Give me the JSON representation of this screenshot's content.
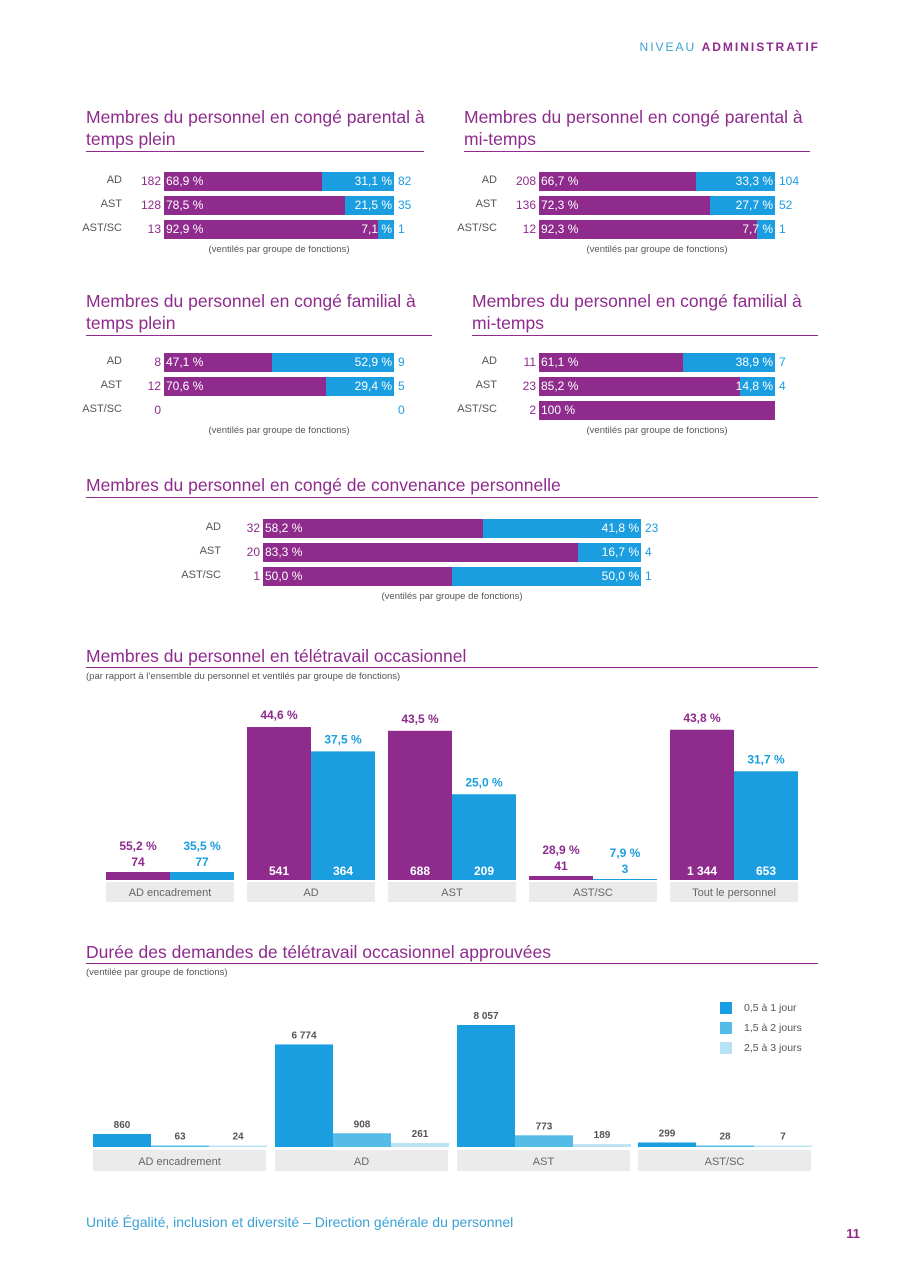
{
  "header": {
    "niveau": "NIVEAU",
    "administratif": "ADMINISTRATIF"
  },
  "colors": {
    "purple": "#8e2b8d",
    "blue": "#1a9ee0",
    "mid_blue": "#55bce8",
    "light_blue": "#b9e3f5",
    "label_bg": "#ebebeb"
  },
  "split_charts": [
    {
      "title_l1": "Membres du personnel en congé parental à",
      "title_l2": "temps plein",
      "caption": "(ventilés par groupe de fonctions)",
      "rows": [
        {
          "label": "AD",
          "n_left": "182",
          "p_left": "68,9 %",
          "p_right": "31,1 %",
          "n_right": "82",
          "frac": 0.689
        },
        {
          "label": "AST",
          "n_left": "128",
          "p_left": "78,5 %",
          "p_right": "21,5 %",
          "n_right": "35",
          "frac": 0.785
        },
        {
          "label": "AST/SC",
          "n_left": "13",
          "p_left": "92,9 %",
          "p_right": "7,1 %",
          "n_right": "1",
          "frac": 0.929
        }
      ]
    },
    {
      "title_l1": "Membres du personnel en congé parental à",
      "title_l2": "mi-temps",
      "caption": "(ventilés par groupe de fonctions)",
      "rows": [
        {
          "label": "AD",
          "n_left": "208",
          "p_left": "66,7 %",
          "p_right": "33,3 %",
          "n_right": "104",
          "frac": 0.667
        },
        {
          "label": "AST",
          "n_left": "136",
          "p_left": "72,3 %",
          "p_right": "27,7 %",
          "n_right": "52",
          "frac": 0.723
        },
        {
          "label": "AST/SC",
          "n_left": "12",
          "p_left": "92,3 %",
          "p_right": "7,7 %",
          "n_right": "1",
          "frac": 0.923
        }
      ]
    },
    {
      "title_l1": "Membres du personnel en congé familial à",
      "title_l2": "temps plein",
      "caption": "(ventilés par groupe de fonctions)",
      "rows": [
        {
          "label": "AD",
          "n_left": "8",
          "p_left": "47,1 %",
          "p_right": "52,9 %",
          "n_right": "9",
          "frac": 0.471
        },
        {
          "label": "AST",
          "n_left": "12",
          "p_left": "70,6 %",
          "p_right": "29,4 %",
          "n_right": "5",
          "frac": 0.706
        },
        {
          "label": "AST/SC",
          "n_left": "0",
          "p_left": "",
          "p_right": "",
          "n_right": "0",
          "frac": 0,
          "empty": true
        }
      ]
    },
    {
      "title_l1": "Membres du personnel en congé familial à",
      "title_l2": "mi-temps",
      "caption": "(ventilés par groupe de fonctions)",
      "rows": [
        {
          "label": "AD",
          "n_left": "11",
          "p_left": "61,1 %",
          "p_right": "38,9 %",
          "n_right": "7",
          "frac": 0.611
        },
        {
          "label": "AST",
          "n_left": "23",
          "p_left": "85,2 %",
          "p_right": "14,8 %",
          "n_right": "4",
          "frac": 0.852
        },
        {
          "label": "AST/SC",
          "n_left": "2",
          "p_left": "100 %",
          "p_right": "",
          "n_right": "",
          "frac": 1.0
        }
      ]
    },
    {
      "title_l1": "Membres du personnel en congé de convenance personnelle",
      "title_l2": "",
      "caption": "(ventilés par groupe de fonctions)",
      "rows": [
        {
          "label": "AD",
          "n_left": "32",
          "p_left": "58,2 %",
          "p_right": "41,8 %",
          "n_right": "23",
          "frac": 0.582
        },
        {
          "label": "AST",
          "n_left": "20",
          "p_left": "83,3 %",
          "p_right": "16,7 %",
          "n_right": "4",
          "frac": 0.833
        },
        {
          "label": "AST/SC",
          "n_left": "1",
          "p_left": "50,0 %",
          "p_right": "50,0 %",
          "n_right": "1",
          "frac": 0.5
        }
      ]
    }
  ],
  "telework": {
    "title": "Membres du personnel en télétravail occasionnel",
    "subtitle": "(par rapport à l’ensemble du personnel et ventilés par groupe de fonctions)"
  },
  "duration": {
    "title": "Durée des demandes de télétravail occasionnel approuvées",
    "subtitle": "(ventilée par groupe de fonctions)"
  },
  "chart_data": [
    {
      "type": "bar",
      "title": "Membres du personnel en télétravail occasionnel",
      "categories": [
        "AD encadrement",
        "AD",
        "AST",
        "AST/SC",
        "Tout le personnel"
      ],
      "series": [
        {
          "values": [
            55.2,
            44.6,
            43.5,
            28.9,
            43.8
          ],
          "labels": [
            "55,2 %",
            "44,6 %",
            "43,5 %",
            "28,9 %",
            "43,8 %"
          ],
          "counts": [
            "74",
            "541",
            "688",
            "41",
            "1 344"
          ],
          "color": "#8e2b8d"
        },
        {
          "values": [
            35.5,
            37.5,
            25.0,
            7.9,
            31.7
          ],
          "labels": [
            "35,5 %",
            "37,5 %",
            "25,0 %",
            "7,9 %",
            "31,7 %"
          ],
          "counts": [
            "77",
            "364",
            "209",
            "3",
            "653"
          ],
          "color": "#1a9ee0"
        }
      ]
    },
    {
      "type": "bar",
      "title": "Durée des demandes de télétravail occasionnel approuvées",
      "categories": [
        "AD encadrement",
        "AD",
        "AST",
        "AST/SC"
      ],
      "series": [
        {
          "name": "0,5 à 1 jour",
          "values": [
            860,
            6774,
            8057,
            299
          ],
          "labels": [
            "860",
            "6 774",
            "8 057",
            "299"
          ],
          "color": "#1a9ee0"
        },
        {
          "name": "1,5 à 2 jours",
          "values": [
            63,
            908,
            773,
            28
          ],
          "labels": [
            "63",
            "908",
            "773",
            "28"
          ],
          "color": "#55bce8"
        },
        {
          "name": "2,5 à 3 jours",
          "values": [
            24,
            261,
            189,
            7
          ],
          "labels": [
            "24",
            "261",
            "189",
            "7"
          ],
          "color": "#b9e3f5"
        }
      ],
      "legend": "top-right"
    }
  ],
  "footer": {
    "text": "Unité Égalité, inclusion et diversité  – Direction générale du personnel",
    "page": "11"
  }
}
